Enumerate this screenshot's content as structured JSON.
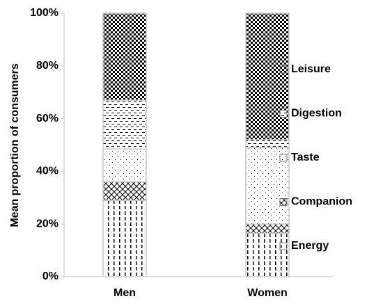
{
  "chart_data": {
    "type": "stacked-bar",
    "y_label": "Mean proportion of consumers",
    "categories": [
      "Men",
      "Women"
    ],
    "series": [
      {
        "name": "Energy",
        "color": "#000000",
        "pattern": "dashed-vertical",
        "values": [
          29,
          16.5
        ]
      },
      {
        "name": "Companion",
        "color": "#000000",
        "pattern": "diagonal-cross",
        "values": [
          7,
          3.5
        ]
      },
      {
        "name": "Taste",
        "color": "#000000",
        "pattern": "dots",
        "values": [
          12.5,
          29
        ]
      },
      {
        "name": "Digestion",
        "color": "#000000",
        "pattern": "horizontal-dashes",
        "values": [
          18.5,
          3
        ]
      },
      {
        "name": "Leisure",
        "color": "#000000",
        "pattern": "checker",
        "values": [
          33,
          48
        ]
      }
    ],
    "ylim": [
      0,
      100
    ],
    "yticks": [
      {
        "value": 0,
        "label": "0%"
      },
      {
        "value": 20,
        "label": "20%"
      },
      {
        "value": 40,
        "label": "40%"
      },
      {
        "value": 60,
        "label": "60%"
      },
      {
        "value": 80,
        "label": "80%"
      },
      {
        "value": 100,
        "label": "100%"
      }
    ],
    "legend": "right"
  }
}
